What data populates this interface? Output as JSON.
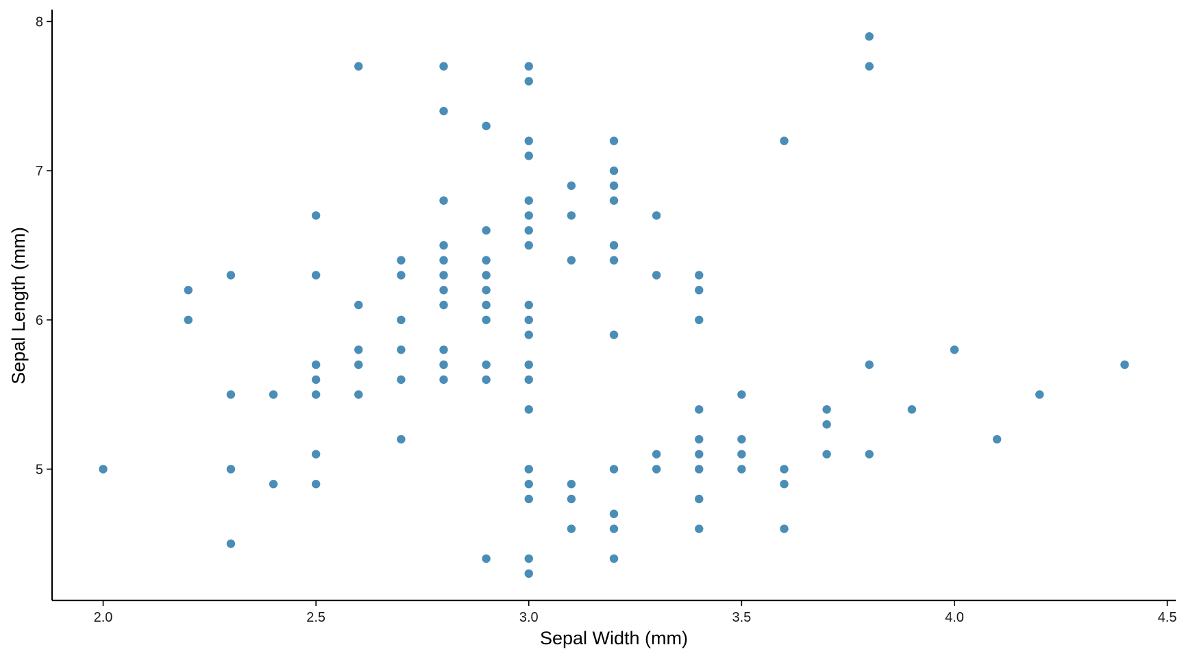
{
  "chart_data": {
    "type": "scatter",
    "title": "",
    "xlabel": "Sepal Width (mm)",
    "ylabel": "Sepal Length (mm)",
    "xlim": [
      1.88,
      4.52
    ],
    "ylim": [
      4.12,
      8.08
    ],
    "x_ticks": [
      "2.0",
      "2.5",
      "3.0",
      "3.5",
      "4.0",
      "4.5"
    ],
    "x_tick_values": [
      2.0,
      2.5,
      3.0,
      3.5,
      4.0,
      4.5
    ],
    "y_ticks": [
      "5",
      "6",
      "7",
      "8"
    ],
    "y_tick_values": [
      5,
      6,
      7,
      8
    ],
    "grid": false,
    "legend": "none",
    "point_color": "#4a8db7",
    "points": [
      [
        2.0,
        5.0
      ],
      [
        2.2,
        6.2
      ],
      [
        2.2,
        6.0
      ],
      [
        2.3,
        6.3
      ],
      [
        2.3,
        5.5
      ],
      [
        2.3,
        5.0
      ],
      [
        2.3,
        4.5
      ],
      [
        2.4,
        5.5
      ],
      [
        2.4,
        4.9
      ],
      [
        2.5,
        6.7
      ],
      [
        2.5,
        6.3
      ],
      [
        2.5,
        5.7
      ],
      [
        2.5,
        5.6
      ],
      [
        2.5,
        5.5
      ],
      [
        2.5,
        5.1
      ],
      [
        2.5,
        4.9
      ],
      [
        2.6,
        7.7
      ],
      [
        2.6,
        6.1
      ],
      [
        2.6,
        5.8
      ],
      [
        2.6,
        5.7
      ],
      [
        2.6,
        5.5
      ],
      [
        2.7,
        6.4
      ],
      [
        2.7,
        6.3
      ],
      [
        2.7,
        6.0
      ],
      [
        2.7,
        5.8
      ],
      [
        2.7,
        5.6
      ],
      [
        2.7,
        5.2
      ],
      [
        2.8,
        7.7
      ],
      [
        2.8,
        7.4
      ],
      [
        2.8,
        6.8
      ],
      [
        2.8,
        6.5
      ],
      [
        2.8,
        6.4
      ],
      [
        2.8,
        6.3
      ],
      [
        2.8,
        6.2
      ],
      [
        2.8,
        6.1
      ],
      [
        2.8,
        5.8
      ],
      [
        2.8,
        5.7
      ],
      [
        2.8,
        5.6
      ],
      [
        2.9,
        7.3
      ],
      [
        2.9,
        6.6
      ],
      [
        2.9,
        6.4
      ],
      [
        2.9,
        6.3
      ],
      [
        2.9,
        6.2
      ],
      [
        2.9,
        6.1
      ],
      [
        2.9,
        6.0
      ],
      [
        2.9,
        5.7
      ],
      [
        2.9,
        5.6
      ],
      [
        2.9,
        4.4
      ],
      [
        3.0,
        7.7
      ],
      [
        3.0,
        7.6
      ],
      [
        3.0,
        7.2
      ],
      [
        3.0,
        7.1
      ],
      [
        3.0,
        6.8
      ],
      [
        3.0,
        6.7
      ],
      [
        3.0,
        6.6
      ],
      [
        3.0,
        6.5
      ],
      [
        3.0,
        6.1
      ],
      [
        3.0,
        6.0
      ],
      [
        3.0,
        5.9
      ],
      [
        3.0,
        5.7
      ],
      [
        3.0,
        5.6
      ],
      [
        3.0,
        5.4
      ],
      [
        3.0,
        5.0
      ],
      [
        3.0,
        4.9
      ],
      [
        3.0,
        4.8
      ],
      [
        3.0,
        4.4
      ],
      [
        3.0,
        4.3
      ],
      [
        3.1,
        6.9
      ],
      [
        3.1,
        6.7
      ],
      [
        3.1,
        6.4
      ],
      [
        3.1,
        4.9
      ],
      [
        3.1,
        4.8
      ],
      [
        3.1,
        4.6
      ],
      [
        3.2,
        7.2
      ],
      [
        3.2,
        7.0
      ],
      [
        3.2,
        6.9
      ],
      [
        3.2,
        6.8
      ],
      [
        3.2,
        6.5
      ],
      [
        3.2,
        6.4
      ],
      [
        3.2,
        5.9
      ],
      [
        3.2,
        5.0
      ],
      [
        3.2,
        4.7
      ],
      [
        3.2,
        4.6
      ],
      [
        3.2,
        4.4
      ],
      [
        3.3,
        6.7
      ],
      [
        3.3,
        6.3
      ],
      [
        3.3,
        5.1
      ],
      [
        3.3,
        5.0
      ],
      [
        3.4,
        6.3
      ],
      [
        3.4,
        6.2
      ],
      [
        3.4,
        6.0
      ],
      [
        3.4,
        5.4
      ],
      [
        3.4,
        5.2
      ],
      [
        3.4,
        5.1
      ],
      [
        3.4,
        5.0
      ],
      [
        3.4,
        4.8
      ],
      [
        3.4,
        4.6
      ],
      [
        3.5,
        5.5
      ],
      [
        3.5,
        5.2
      ],
      [
        3.5,
        5.1
      ],
      [
        3.5,
        5.0
      ],
      [
        3.6,
        7.2
      ],
      [
        3.6,
        5.0
      ],
      [
        3.6,
        4.9
      ],
      [
        3.6,
        4.6
      ],
      [
        3.7,
        5.4
      ],
      [
        3.7,
        5.3
      ],
      [
        3.7,
        5.1
      ],
      [
        3.8,
        7.9
      ],
      [
        3.8,
        7.7
      ],
      [
        3.8,
        5.7
      ],
      [
        3.8,
        5.1
      ],
      [
        3.9,
        5.4
      ],
      [
        4.0,
        5.8
      ],
      [
        4.1,
        5.2
      ],
      [
        4.2,
        5.5
      ],
      [
        4.4,
        5.7
      ]
    ]
  }
}
